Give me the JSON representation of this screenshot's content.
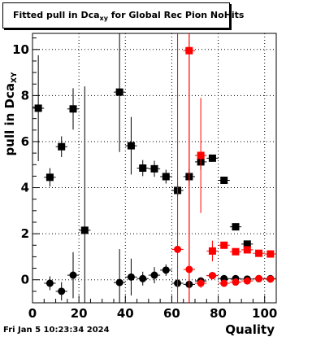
{
  "title": {
    "prefix": "Fitted pull in Dca",
    "subscript": "xy",
    "suffix": " for Global Rec Pion NoHits"
  },
  "date": "Fri Jan  5 10:23:34 2024",
  "chart_data": {
    "type": "scatter",
    "xlabel": "Quality",
    "ylabel_main": "pull in Dca",
    "ylabel_sub": "XY",
    "xlim": [
      0,
      105
    ],
    "ylim": [
      -1,
      10.7
    ],
    "x_ticks": [
      0,
      20,
      40,
      60,
      80,
      100
    ],
    "y_ticks": [
      0,
      2,
      4,
      6,
      8,
      10
    ],
    "grid": true,
    "series": [
      {
        "marker": "square",
        "color": "#000000",
        "points": [
          {
            "x": 2.5,
            "y": 7.45,
            "ey": 2.3,
            "ex": 2.5
          },
          {
            "x": 7.5,
            "y": 4.45,
            "ey": 0.4,
            "ex": 2.5
          },
          {
            "x": 12.5,
            "y": 5.78,
            "ey": 0.45,
            "ex": 2.5
          },
          {
            "x": 17.5,
            "y": 7.42,
            "ey": 0.9,
            "ex": 2.5
          },
          {
            "x": 22.5,
            "y": 2.15,
            "ey": 6.25,
            "ex": 2.5
          },
          {
            "x": 37.5,
            "y": 8.15,
            "ey": 2.6,
            "ex": 2.5
          },
          {
            "x": 42.5,
            "y": 5.82,
            "ey": 1.25,
            "ex": 2.5
          },
          {
            "x": 47.5,
            "y": 4.85,
            "ey": 0.35,
            "ex": 2.5
          },
          {
            "x": 52.5,
            "y": 4.82,
            "ey": 0.35,
            "ex": 2.5
          },
          {
            "x": 57.5,
            "y": 4.48,
            "ey": 0.3,
            "ex": 2.5
          },
          {
            "x": 62.5,
            "y": 3.88,
            "ey": 0.25,
            "ex": 2.5
          },
          {
            "x": 67.5,
            "y": 4.48,
            "ey": 0.35,
            "ex": 2.5
          },
          {
            "x": 72.5,
            "y": 5.12,
            "ey": 0.35,
            "ex": 2.5
          },
          {
            "x": 77.5,
            "y": 5.28,
            "ey": 0.15,
            "ex": 2.5
          },
          {
            "x": 82.5,
            "y": 4.32,
            "ey": 0.1,
            "ex": 2.5
          },
          {
            "x": 87.5,
            "y": 2.3,
            "ey": 0.1,
            "ex": 2.5
          },
          {
            "x": 92.5,
            "y": 1.55,
            "ey": 0.1,
            "ex": 2.5
          }
        ]
      },
      {
        "marker": "circle",
        "color": "#000000",
        "points": [
          {
            "x": 7.5,
            "y": -0.15,
            "ey": 0.3,
            "ex": 2.5
          },
          {
            "x": 12.5,
            "y": -0.5,
            "ey": 0.4,
            "ex": 2.5
          },
          {
            "x": 17.5,
            "y": 0.2,
            "ey": 1.0,
            "ex": 2.5
          },
          {
            "x": 37.5,
            "y": -0.12,
            "ey": 1.45,
            "ex": 2.5
          },
          {
            "x": 42.5,
            "y": 0.12,
            "ey": 0.8,
            "ex": 2.5
          },
          {
            "x": 47.5,
            "y": 0.05,
            "ey": 0.3,
            "ex": 2.5
          },
          {
            "x": 52.5,
            "y": 0.2,
            "ey": 0.35,
            "ex": 2.5
          },
          {
            "x": 57.5,
            "y": 0.42,
            "ey": 0.25,
            "ex": 2.5
          },
          {
            "x": 62.5,
            "y": -0.15,
            "ey": 0.2,
            "ex": 2.5
          },
          {
            "x": 67.5,
            "y": -0.2,
            "ey": 0.2,
            "ex": 2.5
          },
          {
            "x": 72.5,
            "y": -0.05,
            "ey": 0.15,
            "ex": 2.5
          },
          {
            "x": 77.5,
            "y": 0.18,
            "ey": 0.1,
            "ex": 2.5
          },
          {
            "x": 82.5,
            "y": 0.05,
            "ey": 0.05,
            "ex": 2.5
          },
          {
            "x": 87.5,
            "y": 0.05,
            "ey": 0.05,
            "ex": 2.5
          },
          {
            "x": 92.5,
            "y": 0.03,
            "ey": 0.05,
            "ex": 2.5
          },
          {
            "x": 97.5,
            "y": 0.05,
            "ey": 0.05,
            "ex": 2.5
          },
          {
            "x": 102.5,
            "y": 0.05,
            "ey": 0.05,
            "ex": 2.5
          }
        ]
      },
      {
        "marker": "square",
        "color": "#ff0000",
        "points": [
          {
            "x": 67.5,
            "y": 9.95,
            "ey": 11.0,
            "ex": 2.5
          },
          {
            "x": 72.5,
            "y": 5.4,
            "ey": 2.5,
            "ex": 2.5
          },
          {
            "x": 77.5,
            "y": 1.25,
            "ey": 0.45,
            "ex": 2.5
          },
          {
            "x": 82.5,
            "y": 1.5,
            "ey": 0.15,
            "ex": 2.5
          },
          {
            "x": 87.5,
            "y": 1.22,
            "ey": 0.1,
            "ex": 2.5
          },
          {
            "x": 92.5,
            "y": 1.3,
            "ey": 0.1,
            "ex": 2.5
          },
          {
            "x": 97.5,
            "y": 1.15,
            "ey": 0.05,
            "ex": 2.5
          },
          {
            "x": 102.5,
            "y": 1.12,
            "ey": 0.05,
            "ex": 2.5
          }
        ]
      },
      {
        "marker": "circle",
        "color": "#ff0000",
        "points": [
          {
            "x": 62.5,
            "y": 1.32,
            "ey": 11.0,
            "ex": 2.5
          },
          {
            "x": 67.5,
            "y": 0.45,
            "ey": 11.0,
            "ex": 2.5
          },
          {
            "x": 72.5,
            "y": -0.15,
            "ey": 0.2,
            "ex": 2.5
          },
          {
            "x": 77.5,
            "y": 0.18,
            "ey": 0.15,
            "ex": 2.5
          },
          {
            "x": 82.5,
            "y": -0.15,
            "ey": 0.1,
            "ex": 2.5
          },
          {
            "x": 87.5,
            "y": -0.1,
            "ey": 0.1,
            "ex": 2.5
          },
          {
            "x": 92.5,
            "y": -0.05,
            "ey": 0.05,
            "ex": 2.5
          },
          {
            "x": 97.5,
            "y": 0.05,
            "ey": 0.05,
            "ex": 2.5
          },
          {
            "x": 102.5,
            "y": 0.03,
            "ey": 0.05,
            "ex": 2.5
          }
        ]
      }
    ]
  }
}
